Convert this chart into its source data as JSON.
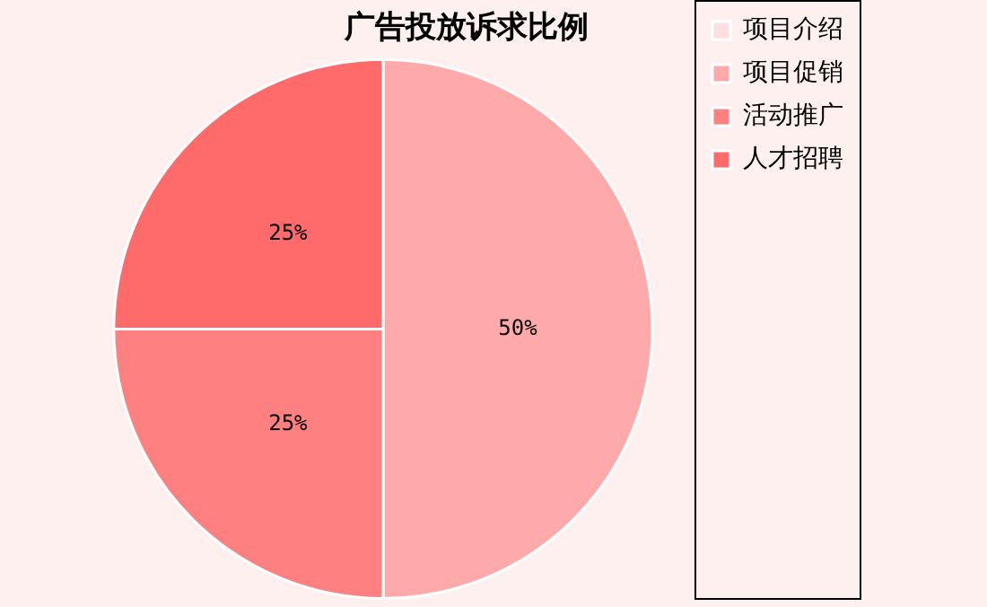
{
  "chart_data": {
    "type": "pie",
    "title": "广告投放诉求比例",
    "categories": [
      "项目介绍",
      "项目促销",
      "活动推广",
      "人才招聘"
    ],
    "values": [
      0,
      50,
      25,
      25
    ],
    "colors": [
      "#ffe0e0",
      "#ffaaaa",
      "#ff8080",
      "#ff6b6b"
    ],
    "value_labels": [
      null,
      "50%",
      "25%",
      "25%"
    ],
    "legend": "right"
  }
}
